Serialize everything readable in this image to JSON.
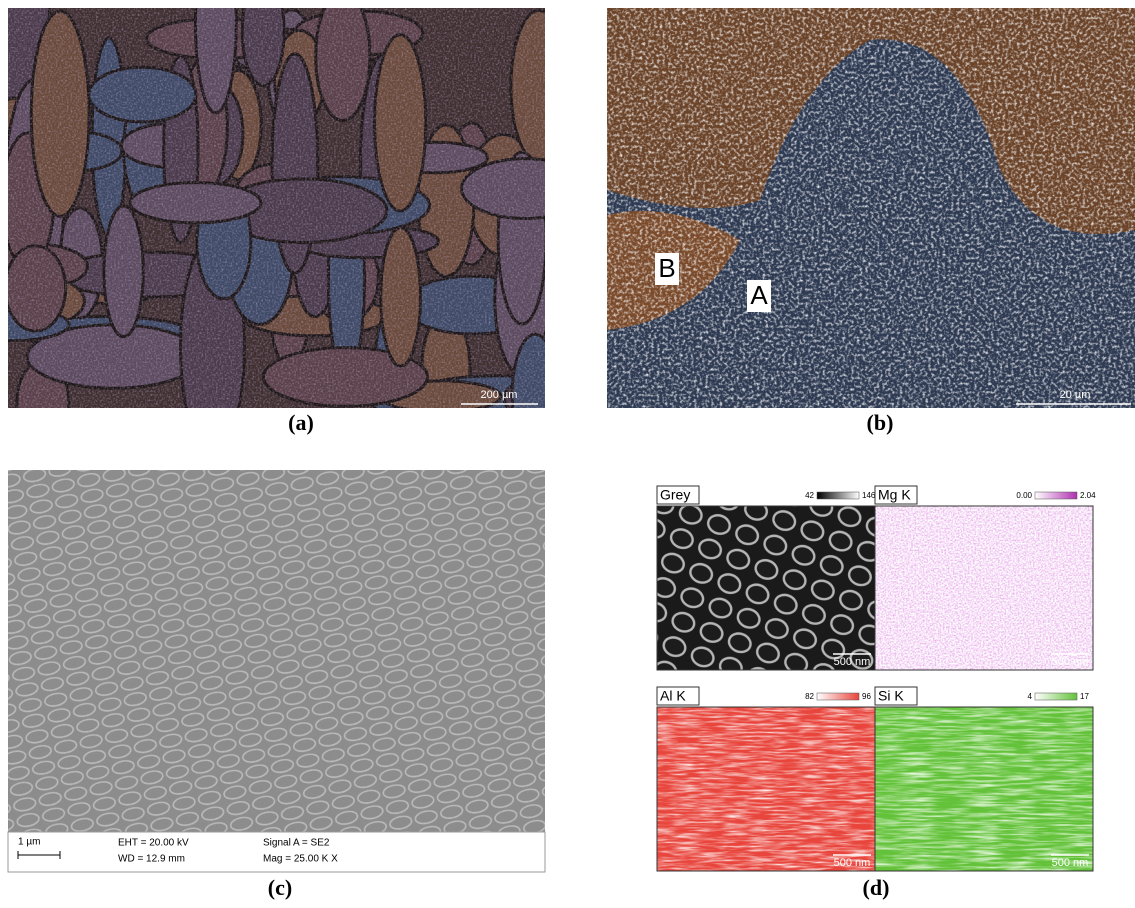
{
  "panels": [
    {
      "label": "(a)",
      "scale_bar": "200 µm"
    },
    {
      "label": "(b)",
      "scale_bar": "20 µm",
      "markers": [
        "B",
        "A"
      ]
    },
    {
      "label": "(c)",
      "scale_bar": "1 µm",
      "info": [
        "EHT = 20.00 kV",
        "WD = 12.9 mm",
        "Signal A = SE2",
        "Mag = 25.00 K X"
      ]
    },
    {
      "label": "(d)",
      "maps": [
        {
          "name": "Grey",
          "min": 42,
          "max": 146,
          "scale_bar": "500 nm"
        },
        {
          "name": "Mg K",
          "min": "0.00",
          "max": 2.04,
          "scale_bar": "500 nm"
        },
        {
          "name": "Al K",
          "min": 82,
          "max": 96,
          "scale_bar": "500 nm"
        },
        {
          "name": "Si K",
          "min": 4,
          "max": 17,
          "scale_bar": "500 nm"
        }
      ]
    }
  ]
}
